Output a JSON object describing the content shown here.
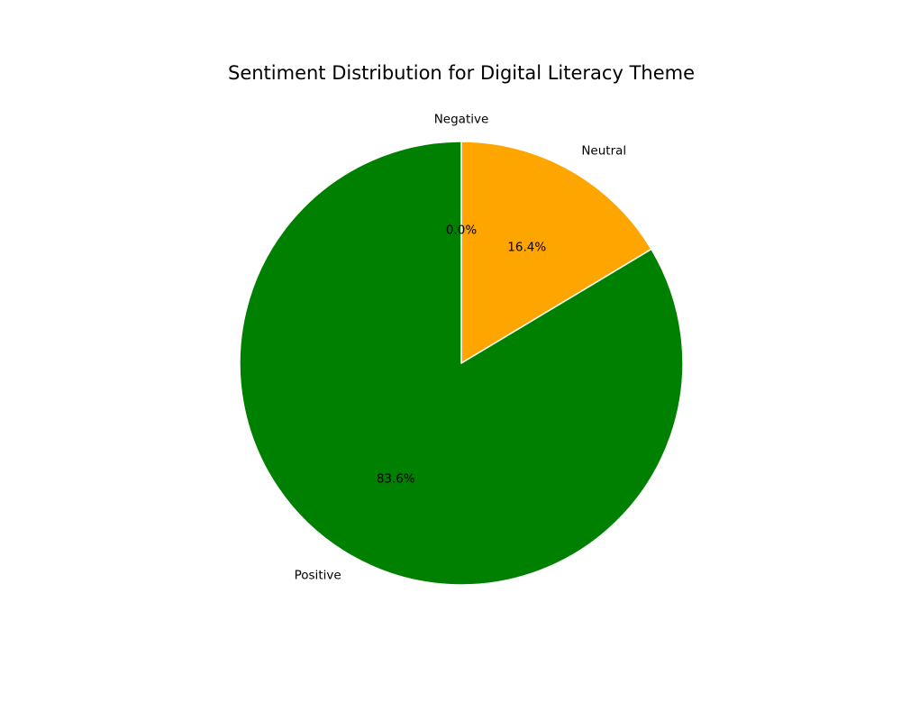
{
  "chart_data": {
    "type": "pie",
    "title": "Sentiment Distribution for Digital Literacy Theme",
    "start_angle_deg": 90,
    "direction": "clockwise",
    "slice_edge_color": "#ffffff",
    "slices": [
      {
        "label": "Negative",
        "value": 0.0,
        "pct_label": "0.0%",
        "color": "#ff0000"
      },
      {
        "label": "Neutral",
        "value": 16.4,
        "pct_label": "16.4%",
        "color": "#ffa500"
      },
      {
        "label": "Positive",
        "value": 83.6,
        "pct_label": "83.6%",
        "color": "#008000"
      }
    ]
  }
}
